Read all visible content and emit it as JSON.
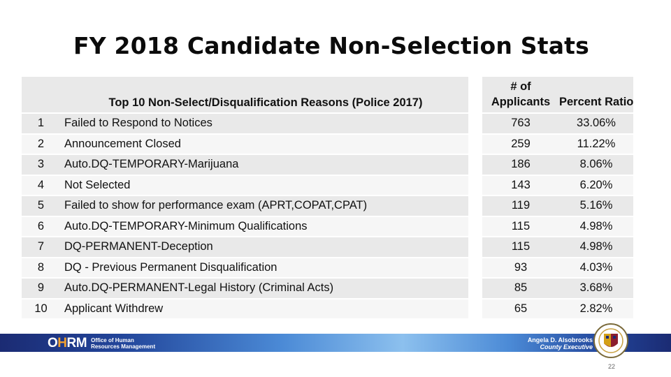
{
  "title": "FY 2018 Candidate Non-Selection Stats",
  "table": {
    "headers": {
      "reason": "Top 10 Non-Select/Disqualification Reasons (Police 2017)",
      "num_line1": "# of",
      "num_line2": "Applicants",
      "pct": "Percent Ratio"
    },
    "rows": [
      {
        "rank": "1",
        "reason": "Failed to Respond to Notices",
        "num": "763",
        "pct": "33.06%"
      },
      {
        "rank": "2",
        "reason": "Announcement Closed",
        "num": "259",
        "pct": "11.22%"
      },
      {
        "rank": "3",
        "reason": "Auto.DQ-TEMPORARY-Marijuana",
        "num": "186",
        "pct": "8.06%"
      },
      {
        "rank": "4",
        "reason": "Not Selected",
        "num": "143",
        "pct": "6.20%"
      },
      {
        "rank": "5",
        "reason": "Failed to show for performance exam (APRT,COPAT,CPAT)",
        "num": "119",
        "pct": "5.16%"
      },
      {
        "rank": "6",
        "reason": "Auto.DQ-TEMPORARY-Minimum Qualifications",
        "num": "115",
        "pct": "4.98%"
      },
      {
        "rank": "7",
        "reason": "DQ-PERMANENT-Deception",
        "num": "115",
        "pct": "4.98%"
      },
      {
        "rank": "8",
        "reason": "DQ - Previous Permanent Disqualification",
        "num": "93",
        "pct": "4.03%"
      },
      {
        "rank": "9",
        "reason": "Auto.DQ-PERMANENT-Legal History (Criminal Acts)",
        "num": "85",
        "pct": "3.68%"
      },
      {
        "rank": "10",
        "reason": "Applicant Withdrew",
        "num": "65",
        "pct": "2.82%"
      }
    ]
  },
  "footer": {
    "logo_o": "O",
    "logo_h": "H",
    "logo_rm": "RM",
    "org_line1": "Office of Human",
    "org_line2": "Resources Management",
    "exec_name": "Angela D. Alsobrooks",
    "exec_role": "County Executive",
    "seal_icon": "county-seal-icon",
    "page_number": "22"
  }
}
